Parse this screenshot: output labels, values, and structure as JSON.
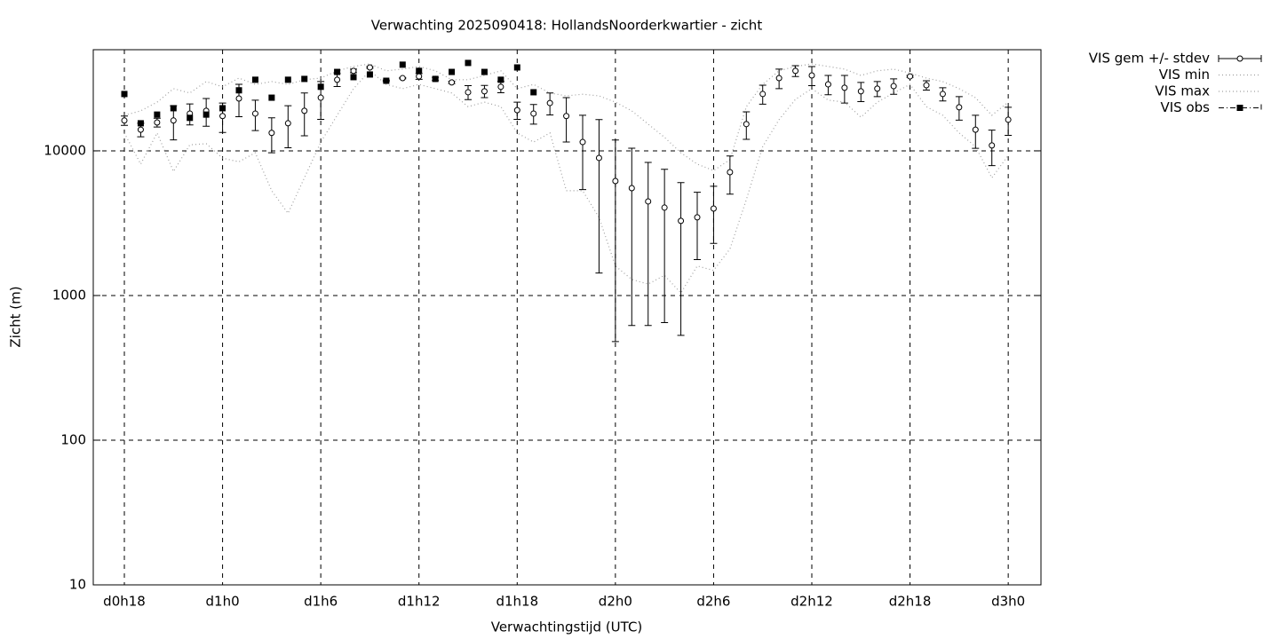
{
  "chart_data": {
    "type": "line",
    "title": "Verwachting 2025090418: HollandsNoorderkwartier - zicht",
    "xlabel": "Verwachtingstijd (UTC)",
    "ylabel": "Zicht (m)",
    "log_y": true,
    "grid": true,
    "legend": "outside-top-right",
    "xlim": [
      16.1,
      74
    ],
    "xticks": [
      {
        "value": 18,
        "label": "d0h18"
      },
      {
        "value": 24,
        "label": "d1h0"
      },
      {
        "value": 30,
        "label": "d1h6"
      },
      {
        "value": 36,
        "label": "d1h12"
      },
      {
        "value": 42,
        "label": "d1h18"
      },
      {
        "value": 48,
        "label": "d2h0"
      },
      {
        "value": 54,
        "label": "d2h6"
      },
      {
        "value": 60,
        "label": "d2h12"
      },
      {
        "value": 66,
        "label": "d2h18"
      },
      {
        "value": 72,
        "label": "d3h0"
      }
    ],
    "ylim": [
      10,
      50000
    ],
    "yticks": [
      10,
      100,
      1000,
      10000
    ],
    "x": [
      18,
      19,
      20,
      21,
      22,
      23,
      24,
      25,
      26,
      27,
      28,
      29,
      30,
      31,
      32,
      33,
      34,
      35,
      36,
      37,
      38,
      39,
      40,
      41,
      42,
      43,
      44,
      45,
      46,
      47,
      48,
      49,
      50,
      51,
      52,
      53,
      54,
      55,
      56,
      57,
      58,
      59,
      60,
      61,
      62,
      63,
      64,
      65,
      66,
      67,
      68,
      69,
      70,
      71,
      72
    ],
    "series": [
      {
        "name": "VIS gem +/- stdev",
        "color": "#000000",
        "values": [
          16200,
          14000,
          15700,
          16200,
          18100,
          18900,
          17400,
          23000,
          18100,
          13300,
          15500,
          18900,
          23300,
          31000,
          35700,
          37700,
          30500,
          31800,
          32700,
          31400,
          29700,
          25400,
          25800,
          27700,
          19100,
          18100,
          21400,
          17400,
          11500,
          8930,
          6180,
          5520,
          4470,
          4050,
          3280,
          3470,
          3990,
          7120,
          15300,
          24700,
          31800,
          35700,
          33200,
          28800,
          27300,
          25800,
          26900,
          28000,
          32700,
          28400,
          24700,
          20000,
          14000,
          10900,
          16400
        ],
        "errors": [
          1200,
          1500,
          1100,
          4300,
          3000,
          4100,
          4000,
          5800,
          4300,
          3600,
          5000,
          6200,
          6800,
          3200,
          1000,
          500,
          300,
          300,
          1500,
          800,
          500,
          2800,
          2500,
          2500,
          2600,
          2800,
          3700,
          5900,
          6100,
          7500,
          5700,
          4900,
          3850,
          3400,
          2750,
          1700,
          1700,
          2100,
          3300,
          3700,
          4900,
          3100,
          5000,
          4400,
          5900,
          3900,
          3200,
          3400,
          500,
          2100,
          2600,
          3700,
          3600,
          3000,
          3600
        ]
      },
      {
        "name": "VIS min",
        "color": "#a0a0a0",
        "values": [
          13300,
          8100,
          13300,
          7200,
          11000,
          11200,
          8900,
          8400,
          9700,
          5300,
          3700,
          6500,
          11500,
          17600,
          26900,
          35700,
          28800,
          26900,
          28800,
          26900,
          25100,
          20200,
          21700,
          20200,
          13300,
          11500,
          13300,
          5300,
          5300,
          3470,
          1600,
          1290,
          1200,
          1380,
          1040,
          1600,
          1490,
          2100,
          4600,
          10700,
          16400,
          22700,
          26900,
          22400,
          21700,
          17100,
          21700,
          25100,
          28800,
          20200,
          17600,
          13300,
          10700,
          6500,
          9300
        ]
      },
      {
        "name": "VIS max",
        "color": "#a0a0a0",
        "values": [
          17600,
          18900,
          21700,
          26900,
          25100,
          30100,
          27700,
          31800,
          28800,
          30100,
          28800,
          31000,
          31800,
          35700,
          38300,
          39900,
          35700,
          36700,
          38300,
          35700,
          31000,
          31000,
          33200,
          35700,
          26900,
          28800,
          25100,
          24000,
          24600,
          24000,
          21700,
          18900,
          15300,
          12400,
          9700,
          8100,
          7300,
          8700,
          20200,
          28800,
          35700,
          38300,
          39900,
          38300,
          36700,
          33200,
          35700,
          36700,
          34500,
          31800,
          30100,
          26900,
          23300,
          17600,
          21700
        ]
      },
      {
        "name": "VIS obs",
        "color": "#000000",
        "values": [
          24700,
          15500,
          17800,
          19700,
          16900,
          17800,
          19700,
          26200,
          31000,
          23300,
          31000,
          31400,
          27700,
          35100,
          32300,
          33700,
          30500,
          39400,
          35700,
          31400,
          35100,
          40500,
          35100,
          31000,
          37700,
          25400,
          null,
          null,
          null,
          null,
          null,
          null,
          null,
          null,
          null,
          null,
          null,
          null,
          null,
          null,
          null,
          null,
          null,
          null,
          null,
          null,
          null,
          null,
          null,
          null,
          null,
          null,
          null,
          null,
          null
        ]
      }
    ]
  }
}
